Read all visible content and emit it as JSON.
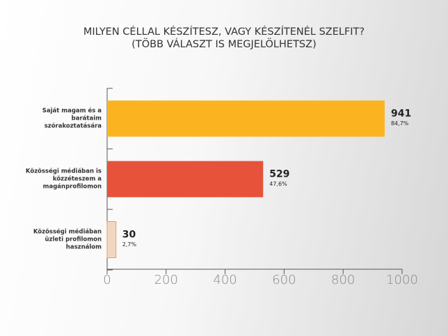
{
  "chart_data": {
    "type": "hbar",
    "title": "MILYEN CÉLLAL KÉSZÍTESZ, VAGY KÉSZÍTENÉL SZELFIT?",
    "subtitle": "(TÖBB VÁLASZT IS MEGJELÖLHETSZ)",
    "categories": [
      "Saját magam és a barátaim szórakoztatására",
      "Közösségi médiában is közzéteszem a magánprofilomon",
      "Közösségi médiában üzleti profilomon használom"
    ],
    "values": [
      941,
      529,
      30
    ],
    "shares": [
      84.7,
      47.6,
      2.7
    ],
    "share_labels": [
      "84,7%",
      "47,6%",
      "2,7%"
    ],
    "colors": [
      "#fbb420",
      "#e6533a",
      "#f4d6c0"
    ],
    "xlim": [
      0,
      1000
    ],
    "xticks": [
      0,
      200,
      400,
      600,
      800,
      1000
    ]
  }
}
